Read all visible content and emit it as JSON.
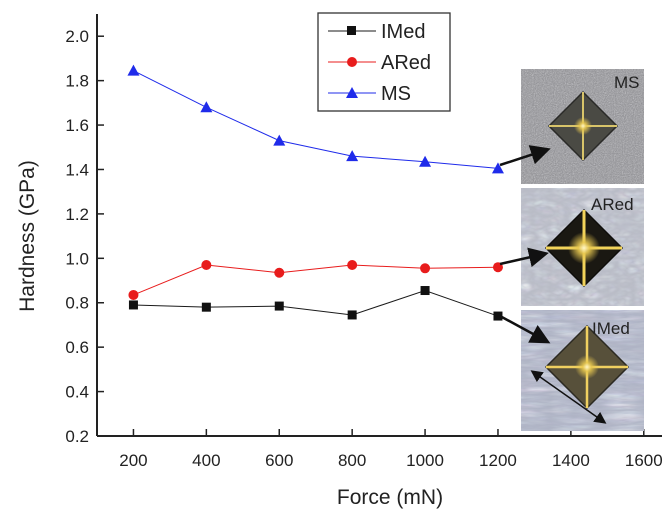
{
  "chart_data": {
    "type": "line",
    "xlabel": "Force (mN)",
    "ylabel": "Hardness (GPa)",
    "xlim": [
      100,
      1650
    ],
    "ylim": [
      0.2,
      2.1
    ],
    "x_ticks": [
      200,
      400,
      600,
      800,
      1000,
      1200,
      1400,
      1600
    ],
    "y_ticks": [
      0.2,
      0.4,
      0.6,
      0.8,
      1.0,
      1.2,
      1.4,
      1.6,
      1.8,
      2.0
    ],
    "x_tick_labels": [
      "200",
      "400",
      "600",
      "800",
      "1000",
      "1200",
      "1400",
      "1600"
    ],
    "y_tick_labels": [
      "0.2",
      "0.4",
      "0.6",
      "0.8",
      "1.0",
      "1.2",
      "1.4",
      "1.6",
      "1.8",
      "2.0"
    ],
    "x": [
      200,
      400,
      600,
      800,
      1000,
      1200
    ],
    "series": [
      {
        "name": "IMed",
        "color": "#1a1a1a",
        "marker": "square",
        "values": [
          0.79,
          0.78,
          0.785,
          0.745,
          0.855,
          0.74
        ]
      },
      {
        "name": "ARed",
        "color": "#e81c1c",
        "marker": "circle",
        "values": [
          0.835,
          0.97,
          0.935,
          0.97,
          0.955,
          0.96
        ]
      },
      {
        "name": "MS",
        "color": "#1f2bea",
        "marker": "triangle",
        "values": [
          1.845,
          1.68,
          1.53,
          1.46,
          1.435,
          1.405
        ]
      }
    ],
    "legend": "top-center",
    "grid": false,
    "insets": [
      {
        "label": "MS",
        "icon": "indentation-micrograph"
      },
      {
        "label": "ARed",
        "icon": "indentation-micrograph"
      },
      {
        "label": "IMed",
        "icon": "indentation-micrograph"
      }
    ]
  }
}
